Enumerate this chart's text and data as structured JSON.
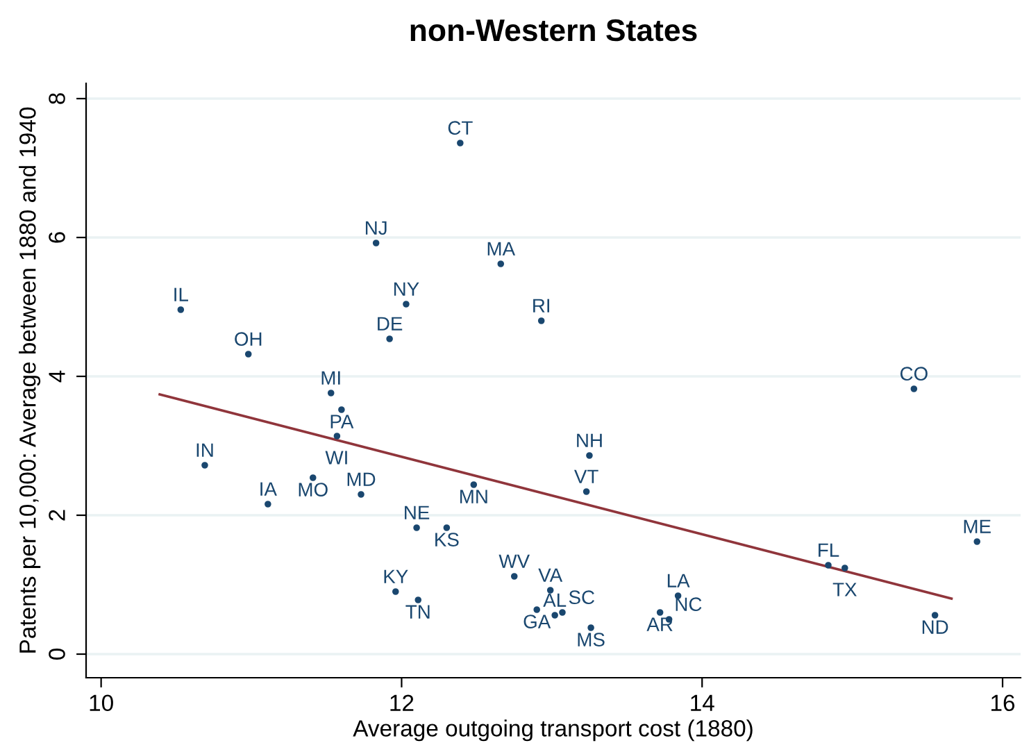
{
  "chart_data": {
    "type": "scatter",
    "title": "non-Western States",
    "xlabel": "Average outgoing transport cost (1880)",
    "ylabel": "Patents per 10,000: Average between 1880 and 1940",
    "xlim": [
      9.9,
      16.12
    ],
    "xticks": [
      10,
      12,
      14,
      16
    ],
    "ylim": [
      -0.34,
      8.22
    ],
    "yticks": [
      0,
      2,
      4,
      6,
      8
    ],
    "grid": "y",
    "series": [
      {
        "marker": "circle",
        "color": "#1a476f",
        "x": [
          12.39,
          11.83,
          12.66,
          12.03,
          12.93,
          10.53,
          11.92,
          10.98,
          15.41,
          11.53,
          11.6,
          11.57,
          13.25,
          10.69,
          11.41,
          12.48,
          13.23,
          11.73,
          11.11,
          12.1,
          12.3,
          15.83,
          14.84,
          14.95,
          12.75,
          12.99,
          13.84,
          11.96,
          12.11,
          12.9,
          13.02,
          13.07,
          13.72,
          13.78,
          13.26,
          15.55
        ],
        "values": [
          7.36,
          5.92,
          5.62,
          5.04,
          4.8,
          4.96,
          4.54,
          4.32,
          3.82,
          3.76,
          3.52,
          3.14,
          2.86,
          2.72,
          2.54,
          2.44,
          2.34,
          2.3,
          2.16,
          1.82,
          1.82,
          1.62,
          1.28,
          1.24,
          1.12,
          0.92,
          0.84,
          0.9,
          0.78,
          0.64,
          0.56,
          0.6,
          0.6,
          0.5,
          0.38,
          0.56
        ],
        "value_labels": [
          "CT",
          "NJ",
          "MA",
          "NY",
          "RI",
          "IL",
          "DE",
          "OH",
          "CO",
          "MI",
          "PA",
          "WI",
          "NH",
          "IN",
          "MO",
          "MN",
          "VT",
          "MD",
          "IA",
          "NE",
          "KS",
          "ME",
          "FL",
          "TX",
          "WV",
          "VA",
          "LA",
          "KY",
          "TN",
          "GA",
          "AL",
          "SC",
          "AR",
          "NC",
          "MS",
          "ND"
        ]
      },
      {
        "type": "line",
        "color": "#90353b",
        "x": [
          10.39,
          15.66
        ],
        "values": [
          3.74,
          0.8
        ]
      }
    ]
  }
}
